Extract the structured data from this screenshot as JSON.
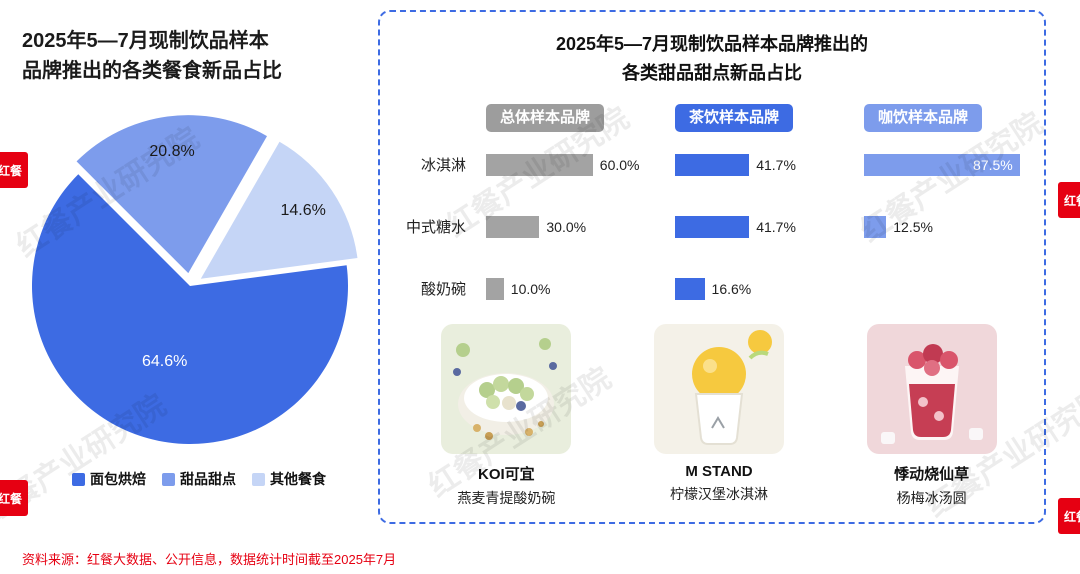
{
  "page": {
    "watermark": "红餐产业研究院",
    "logo_text": "红餐",
    "source_note": "资料来源：红餐大数据、公开信息，数据统计时间截至2025年7月"
  },
  "left_chart": {
    "title_line1": "2025年5—7月现制饮品样本",
    "title_line2": "品牌推出的各类餐食新品占比"
  },
  "right_panel": {
    "title_line1": "2025年5—7月现制饮品样本品牌推出的",
    "title_line2": "各类甜品甜点新品占比",
    "products": [
      {
        "brand": "KOI可宜",
        "item": "燕麦青提酸奶碗"
      },
      {
        "brand": "M STAND",
        "item": "柠檬汉堡冰淇淋"
      },
      {
        "brand": "悸动烧仙草",
        "item": "杨梅冰汤圆"
      }
    ]
  },
  "chart_data": [
    {
      "type": "pie",
      "title": "2025年5—7月现制饮品样本品牌推出的各类餐食新品占比",
      "categories": [
        "面包烘焙",
        "甜品甜点",
        "其他餐食"
      ],
      "values": [
        64.6,
        20.8,
        14.6
      ],
      "colors": [
        "#3D6BE3",
        "#7D9CEC",
        "#C5D5F6"
      ],
      "legend_position": "bottom"
    },
    {
      "type": "bar",
      "title": "2025年5—7月现制饮品样本品牌推出的各类甜品甜点新品占比",
      "orientation": "horizontal",
      "categories": [
        "冰淇淋",
        "中式糖水",
        "酸奶碗"
      ],
      "series": [
        {
          "name": "总体样本品牌",
          "values": [
            60.0,
            30.0,
            10.0
          ],
          "color": "#A3A3A3",
          "badge_color": "#9D9D9D"
        },
        {
          "name": "茶饮样本品牌",
          "values": [
            41.7,
            41.7,
            16.6
          ],
          "color": "#3D6BE3",
          "badge_color": "#3D6BE3"
        },
        {
          "name": "咖饮样本品牌",
          "values": [
            87.5,
            12.5,
            null
          ],
          "color": "#7D9CEC",
          "badge_color": "#7D9CEC"
        }
      ],
      "value_suffix": "%",
      "xlim": [
        0,
        100
      ]
    }
  ]
}
